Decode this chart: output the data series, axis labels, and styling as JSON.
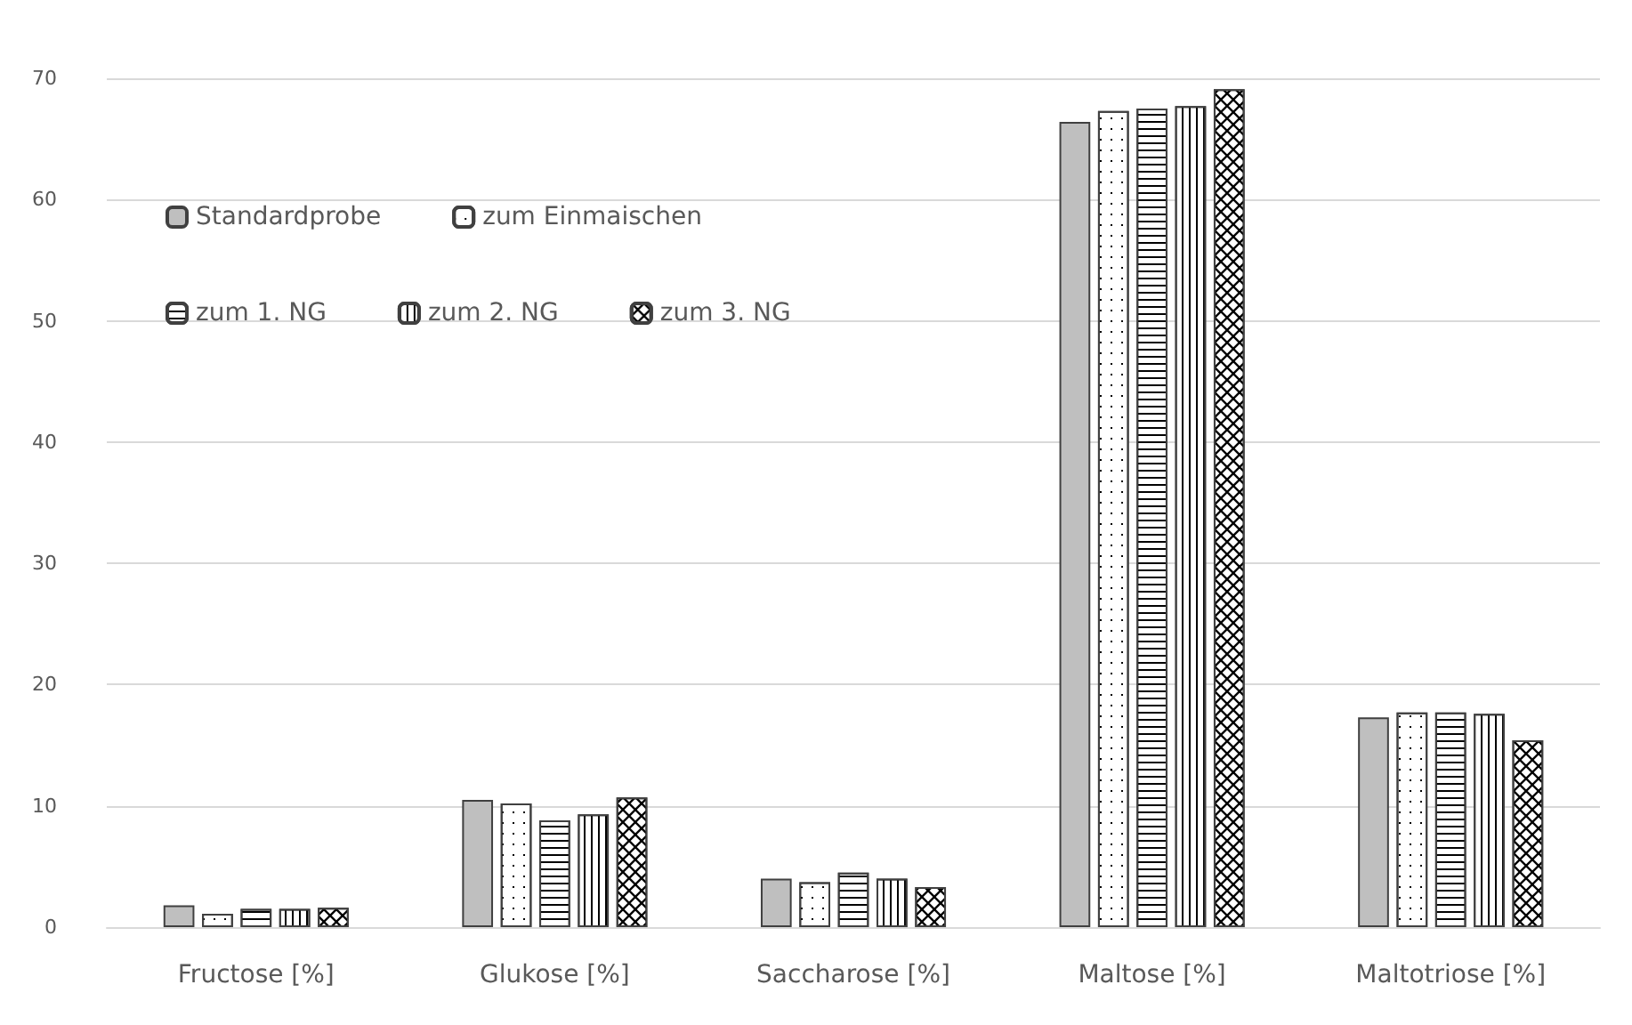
{
  "chart_data": {
    "type": "bar",
    "categories": [
      "Fructose [%]",
      "Glukose [%]",
      "Saccharose [%]",
      "Maltose [%]",
      "Maltotriose [%]"
    ],
    "series": [
      {
        "name": "Standardprobe",
        "color": "#bfbfbf",
        "values": [
          1.8,
          10.5,
          4.0,
          66.4,
          17.3
        ]
      },
      {
        "name": "zum Einmaischen",
        "color": "#ffffff",
        "values": [
          1.1,
          10.2,
          3.7,
          67.3,
          17.7
        ]
      },
      {
        "name": "zum 1. NG",
        "color": "#ffffff",
        "values": [
          1.5,
          8.8,
          4.5,
          67.5,
          17.7
        ]
      },
      {
        "name": "zum 2. NG",
        "color": "#ffffff",
        "values": [
          1.5,
          9.3,
          4.0,
          67.7,
          17.6
        ]
      },
      {
        "name": "zum 3. NG",
        "color": "#ffffff",
        "values": [
          1.6,
          10.7,
          3.3,
          69.1,
          15.4
        ]
      }
    ],
    "ylim": [
      0,
      70
    ],
    "yticks": [
      0,
      10,
      20,
      30,
      40,
      50,
      60,
      70
    ],
    "grid": "y",
    "legend": "top left"
  }
}
